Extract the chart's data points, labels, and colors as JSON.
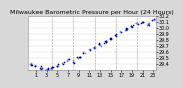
{
  "title": "Milwaukee Barometric Pressure per Hour (24 Hours)",
  "background_color": "#d8d8d8",
  "plot_bg_color": "#ffffff",
  "dot_color_dark": "#0000aa",
  "dot_color_light": "#6688ee",
  "grid_color": "#999999",
  "hours": [
    0,
    1,
    2,
    3,
    4,
    5,
    6,
    7,
    8,
    9,
    10,
    11,
    12,
    13,
    14,
    15,
    16,
    17,
    18,
    19,
    20,
    21,
    22,
    23
  ],
  "pressure": [
    29.41,
    29.37,
    29.34,
    29.31,
    29.33,
    29.38,
    29.42,
    29.46,
    29.44,
    29.52,
    29.58,
    29.63,
    29.67,
    29.72,
    29.76,
    29.82,
    29.87,
    29.93,
    29.98,
    30.03,
    30.08,
    30.11,
    30.07,
    30.14
  ],
  "ylim_low": 29.3,
  "ylim_high": 30.2,
  "ytick_vals": [
    29.4,
    29.5,
    29.6,
    29.7,
    29.8,
    29.9,
    30.0,
    30.1,
    30.2
  ],
  "vgrid_hours": [
    4,
    8,
    12,
    16,
    20
  ],
  "xtick_hours": [
    1,
    3,
    5,
    7,
    9,
    11,
    13,
    15,
    17,
    19,
    21,
    23
  ],
  "title_fontsize": 4.5,
  "tick_fontsize": 3.5,
  "marker_size": 1.5,
  "seed": 42
}
